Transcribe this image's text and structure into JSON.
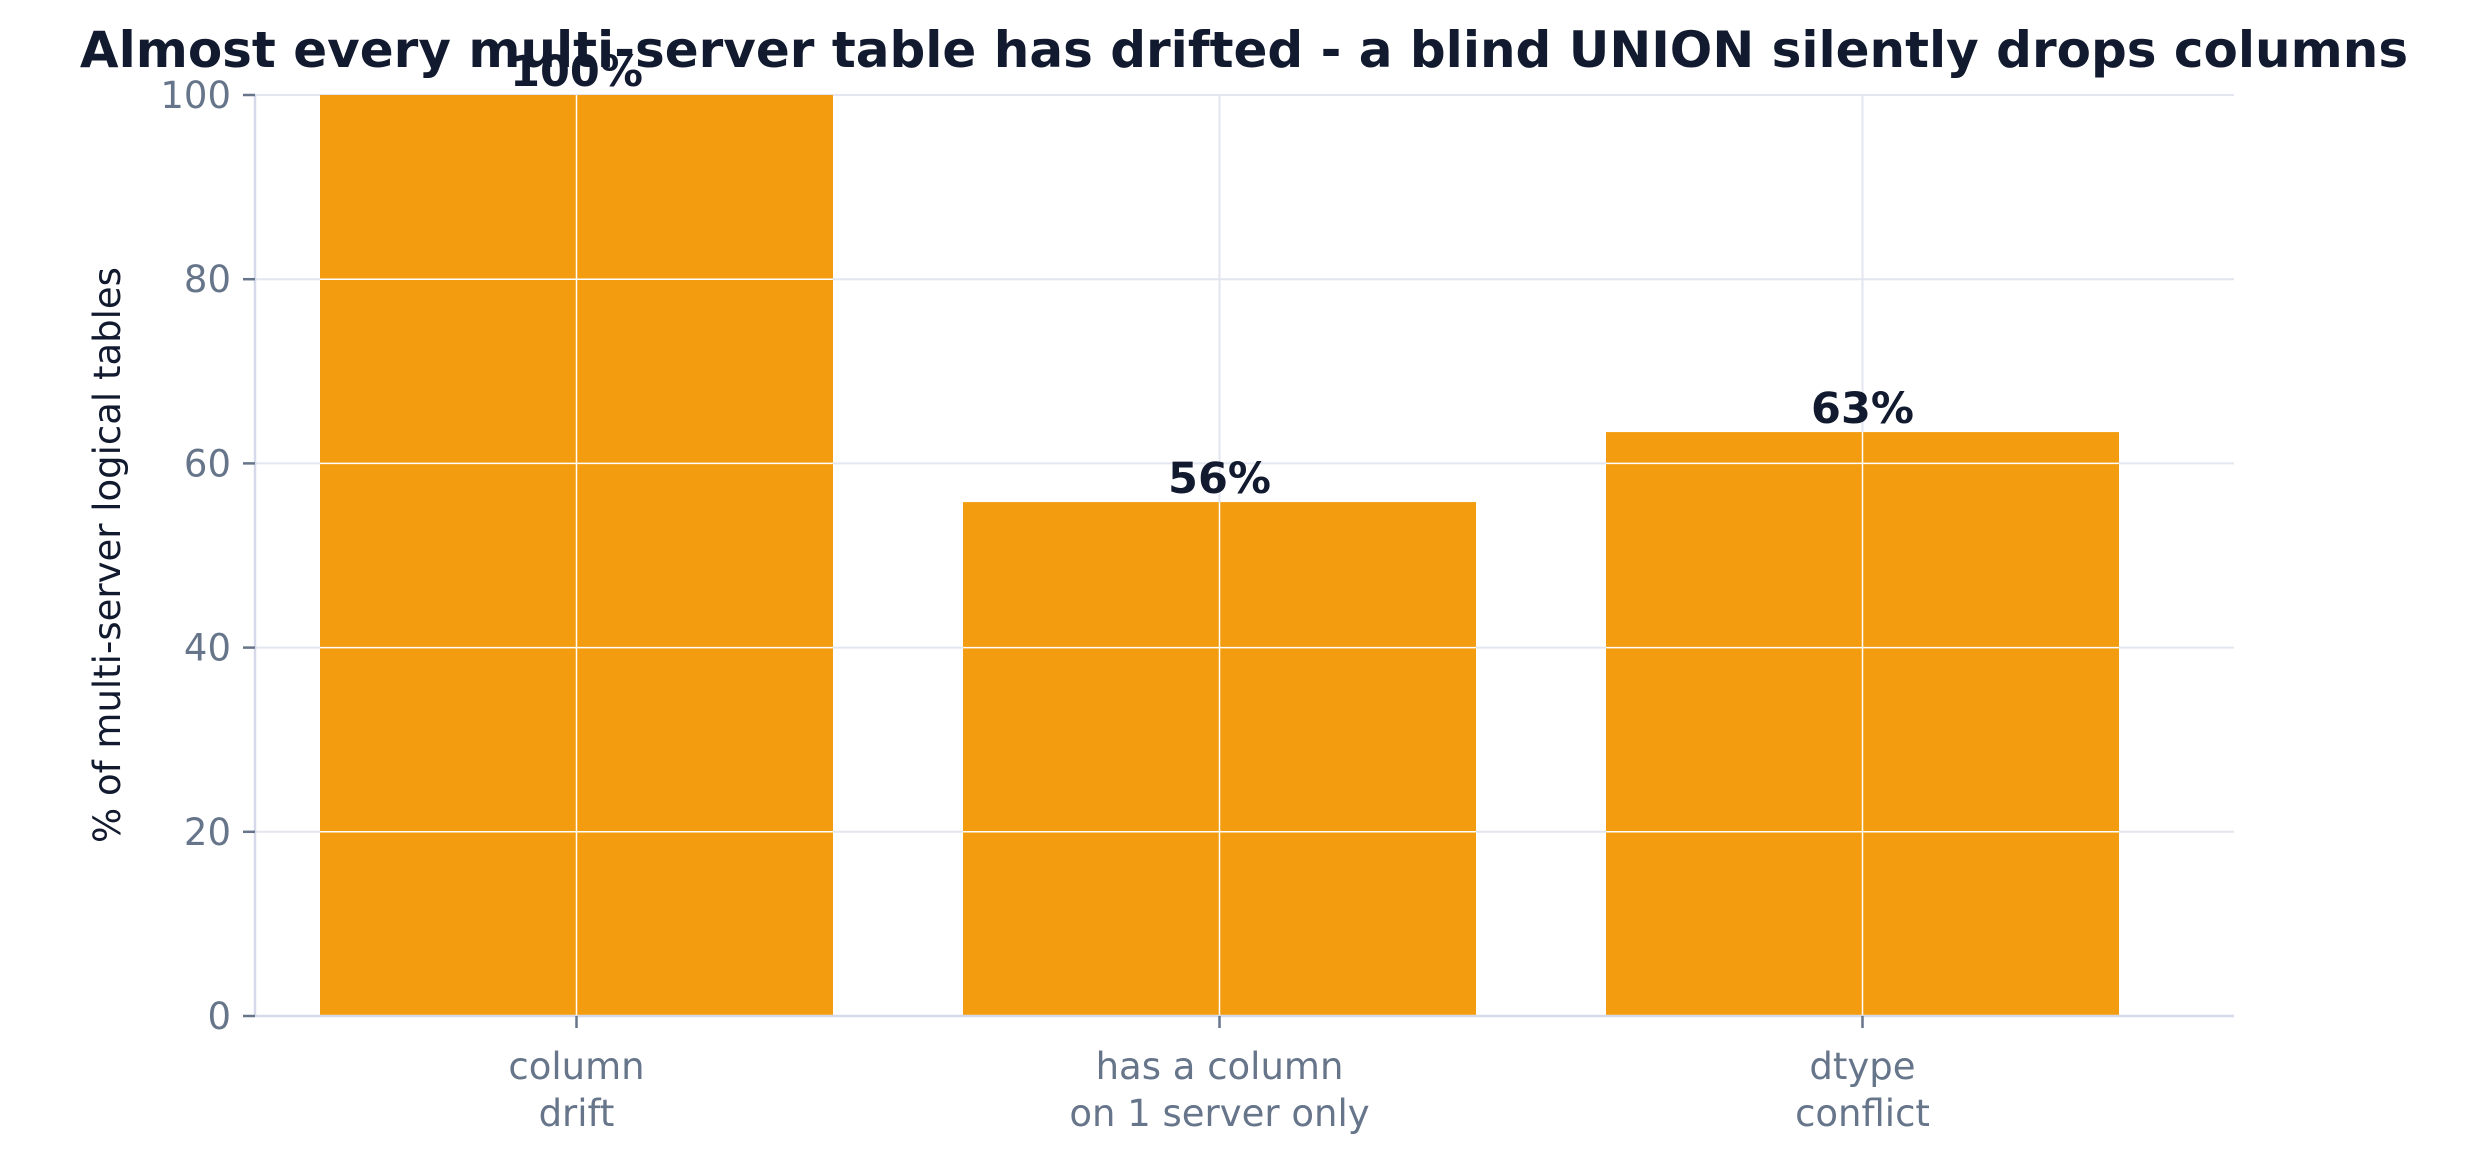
{
  "chart_data": {
    "type": "bar",
    "title": "Almost every multi-server table has drifted - a blind UNION silently drops columns",
    "xlabel": "",
    "ylabel": "% of multi-server logical tables",
    "categories": [
      [
        "column",
        "drift"
      ],
      [
        "has a column",
        "on 1 server only"
      ],
      [
        "dtype",
        "conflict"
      ]
    ],
    "values": [
      100,
      55.8,
      63.4
    ],
    "data_labels": [
      "100%",
      "56%",
      "63%"
    ],
    "ylim": [
      0,
      100
    ],
    "yticks": [
      0,
      20,
      40,
      60,
      80,
      100
    ],
    "ytick_labels": [
      "0",
      "20",
      "40",
      "60",
      "80",
      "100"
    ],
    "grid": true,
    "legend": "none"
  },
  "colors": {
    "bar": "#f39c0f",
    "title": "#111a2e",
    "axis_label": "#111a2e",
    "tick_label": "#66758a",
    "data_label": "#111a2e",
    "grid": "#e3e6f0",
    "axis": "#d5d9ea",
    "gridline_on_bar": "#ffffff"
  }
}
